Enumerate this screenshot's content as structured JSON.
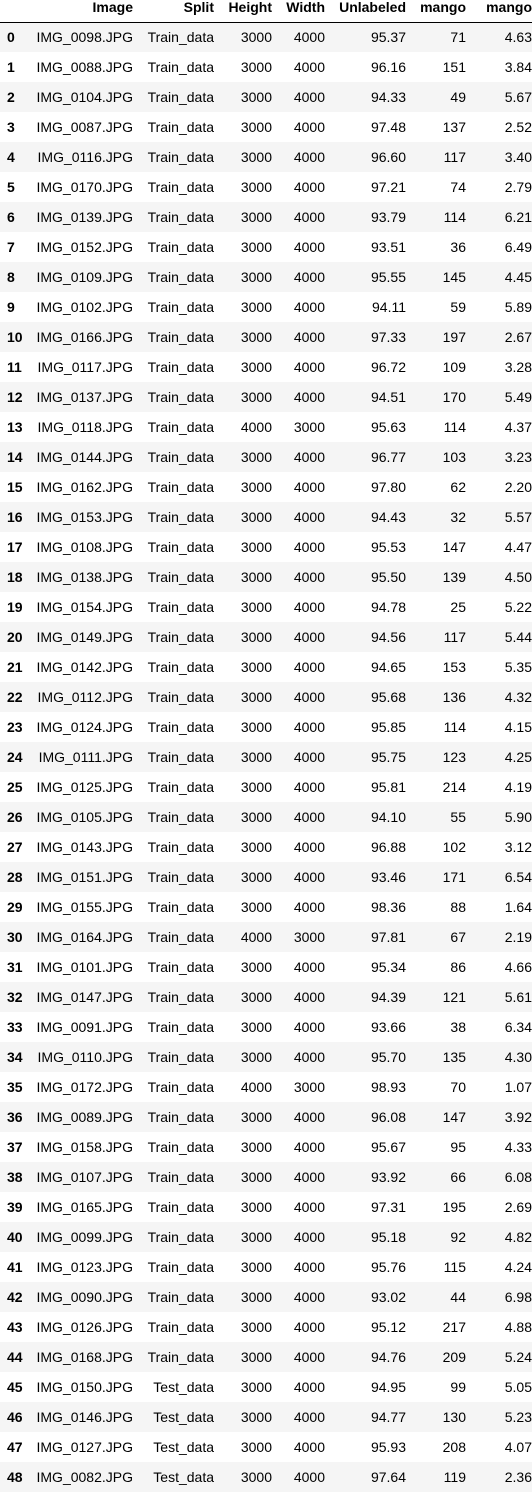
{
  "table": {
    "columns": [
      "",
      "Image",
      "Split",
      "Height",
      "Width",
      "Unlabeled",
      "mango",
      "mango"
    ],
    "rows": [
      [
        "0",
        "IMG_0098.JPG",
        "Train_data",
        "3000",
        "4000",
        "95.37",
        "71",
        "4.63"
      ],
      [
        "1",
        "IMG_0088.JPG",
        "Train_data",
        "3000",
        "4000",
        "96.16",
        "151",
        "3.84"
      ],
      [
        "2",
        "IMG_0104.JPG",
        "Train_data",
        "3000",
        "4000",
        "94.33",
        "49",
        "5.67"
      ],
      [
        "3",
        "IMG_0087.JPG",
        "Train_data",
        "3000",
        "4000",
        "97.48",
        "137",
        "2.52"
      ],
      [
        "4",
        "IMG_0116.JPG",
        "Train_data",
        "3000",
        "4000",
        "96.60",
        "117",
        "3.40"
      ],
      [
        "5",
        "IMG_0170.JPG",
        "Train_data",
        "3000",
        "4000",
        "97.21",
        "74",
        "2.79"
      ],
      [
        "6",
        "IMG_0139.JPG",
        "Train_data",
        "3000",
        "4000",
        "93.79",
        "114",
        "6.21"
      ],
      [
        "7",
        "IMG_0152.JPG",
        "Train_data",
        "3000",
        "4000",
        "93.51",
        "36",
        "6.49"
      ],
      [
        "8",
        "IMG_0109.JPG",
        "Train_data",
        "3000",
        "4000",
        "95.55",
        "145",
        "4.45"
      ],
      [
        "9",
        "IMG_0102.JPG",
        "Train_data",
        "3000",
        "4000",
        "94.11",
        "59",
        "5.89"
      ],
      [
        "10",
        "IMG_0166.JPG",
        "Train_data",
        "3000",
        "4000",
        "97.33",
        "197",
        "2.67"
      ],
      [
        "11",
        "IMG_0117.JPG",
        "Train_data",
        "3000",
        "4000",
        "96.72",
        "109",
        "3.28"
      ],
      [
        "12",
        "IMG_0137.JPG",
        "Train_data",
        "3000",
        "4000",
        "94.51",
        "170",
        "5.49"
      ],
      [
        "13",
        "IMG_0118.JPG",
        "Train_data",
        "4000",
        "3000",
        "95.63",
        "114",
        "4.37"
      ],
      [
        "14",
        "IMG_0144.JPG",
        "Train_data",
        "3000",
        "4000",
        "96.77",
        "103",
        "3.23"
      ],
      [
        "15",
        "IMG_0162.JPG",
        "Train_data",
        "3000",
        "4000",
        "97.80",
        "62",
        "2.20"
      ],
      [
        "16",
        "IMG_0153.JPG",
        "Train_data",
        "3000",
        "4000",
        "94.43",
        "32",
        "5.57"
      ],
      [
        "17",
        "IMG_0108.JPG",
        "Train_data",
        "3000",
        "4000",
        "95.53",
        "147",
        "4.47"
      ],
      [
        "18",
        "IMG_0138.JPG",
        "Train_data",
        "3000",
        "4000",
        "95.50",
        "139",
        "4.50"
      ],
      [
        "19",
        "IMG_0154.JPG",
        "Train_data",
        "3000",
        "4000",
        "94.78",
        "25",
        "5.22"
      ],
      [
        "20",
        "IMG_0149.JPG",
        "Train_data",
        "3000",
        "4000",
        "94.56",
        "117",
        "5.44"
      ],
      [
        "21",
        "IMG_0142.JPG",
        "Train_data",
        "3000",
        "4000",
        "94.65",
        "153",
        "5.35"
      ],
      [
        "22",
        "IMG_0112.JPG",
        "Train_data",
        "3000",
        "4000",
        "95.68",
        "136",
        "4.32"
      ],
      [
        "23",
        "IMG_0124.JPG",
        "Train_data",
        "3000",
        "4000",
        "95.85",
        "114",
        "4.15"
      ],
      [
        "24",
        "IMG_0111.JPG",
        "Train_data",
        "3000",
        "4000",
        "95.75",
        "123",
        "4.25"
      ],
      [
        "25",
        "IMG_0125.JPG",
        "Train_data",
        "3000",
        "4000",
        "95.81",
        "214",
        "4.19"
      ],
      [
        "26",
        "IMG_0105.JPG",
        "Train_data",
        "3000",
        "4000",
        "94.10",
        "55",
        "5.90"
      ],
      [
        "27",
        "IMG_0143.JPG",
        "Train_data",
        "3000",
        "4000",
        "96.88",
        "102",
        "3.12"
      ],
      [
        "28",
        "IMG_0151.JPG",
        "Train_data",
        "3000",
        "4000",
        "93.46",
        "171",
        "6.54"
      ],
      [
        "29",
        "IMG_0155.JPG",
        "Train_data",
        "3000",
        "4000",
        "98.36",
        "88",
        "1.64"
      ],
      [
        "30",
        "IMG_0164.JPG",
        "Train_data",
        "4000",
        "3000",
        "97.81",
        "67",
        "2.19"
      ],
      [
        "31",
        "IMG_0101.JPG",
        "Train_data",
        "3000",
        "4000",
        "95.34",
        "86",
        "4.66"
      ],
      [
        "32",
        "IMG_0147.JPG",
        "Train_data",
        "3000",
        "4000",
        "94.39",
        "121",
        "5.61"
      ],
      [
        "33",
        "IMG_0091.JPG",
        "Train_data",
        "3000",
        "4000",
        "93.66",
        "38",
        "6.34"
      ],
      [
        "34",
        "IMG_0110.JPG",
        "Train_data",
        "3000",
        "4000",
        "95.70",
        "135",
        "4.30"
      ],
      [
        "35",
        "IMG_0172.JPG",
        "Train_data",
        "4000",
        "3000",
        "98.93",
        "70",
        "1.07"
      ],
      [
        "36",
        "IMG_0089.JPG",
        "Train_data",
        "3000",
        "4000",
        "96.08",
        "147",
        "3.92"
      ],
      [
        "37",
        "IMG_0158.JPG",
        "Train_data",
        "3000",
        "4000",
        "95.67",
        "95",
        "4.33"
      ],
      [
        "38",
        "IMG_0107.JPG",
        "Train_data",
        "3000",
        "4000",
        "93.92",
        "66",
        "6.08"
      ],
      [
        "39",
        "IMG_0165.JPG",
        "Train_data",
        "3000",
        "4000",
        "97.31",
        "195",
        "2.69"
      ],
      [
        "40",
        "IMG_0099.JPG",
        "Train_data",
        "3000",
        "4000",
        "95.18",
        "92",
        "4.82"
      ],
      [
        "41",
        "IMG_0123.JPG",
        "Train_data",
        "3000",
        "4000",
        "95.76",
        "115",
        "4.24"
      ],
      [
        "42",
        "IMG_0090.JPG",
        "Train_data",
        "3000",
        "4000",
        "93.02",
        "44",
        "6.98"
      ],
      [
        "43",
        "IMG_0126.JPG",
        "Train_data",
        "3000",
        "4000",
        "95.12",
        "217",
        "4.88"
      ],
      [
        "44",
        "IMG_0168.JPG",
        "Train_data",
        "3000",
        "4000",
        "94.76",
        "209",
        "5.24"
      ],
      [
        "45",
        "IMG_0150.JPG",
        "Test_data",
        "3000",
        "4000",
        "94.95",
        "99",
        "5.05"
      ],
      [
        "46",
        "IMG_0146.JPG",
        "Test_data",
        "3000",
        "4000",
        "94.77",
        "130",
        "5.23"
      ],
      [
        "47",
        "IMG_0127.JPG",
        "Test_data",
        "3000",
        "4000",
        "95.93",
        "208",
        "4.07"
      ],
      [
        "48",
        "IMG_0082.JPG",
        "Test_data",
        "3000",
        "4000",
        "97.64",
        "119",
        "2.36"
      ]
    ]
  }
}
